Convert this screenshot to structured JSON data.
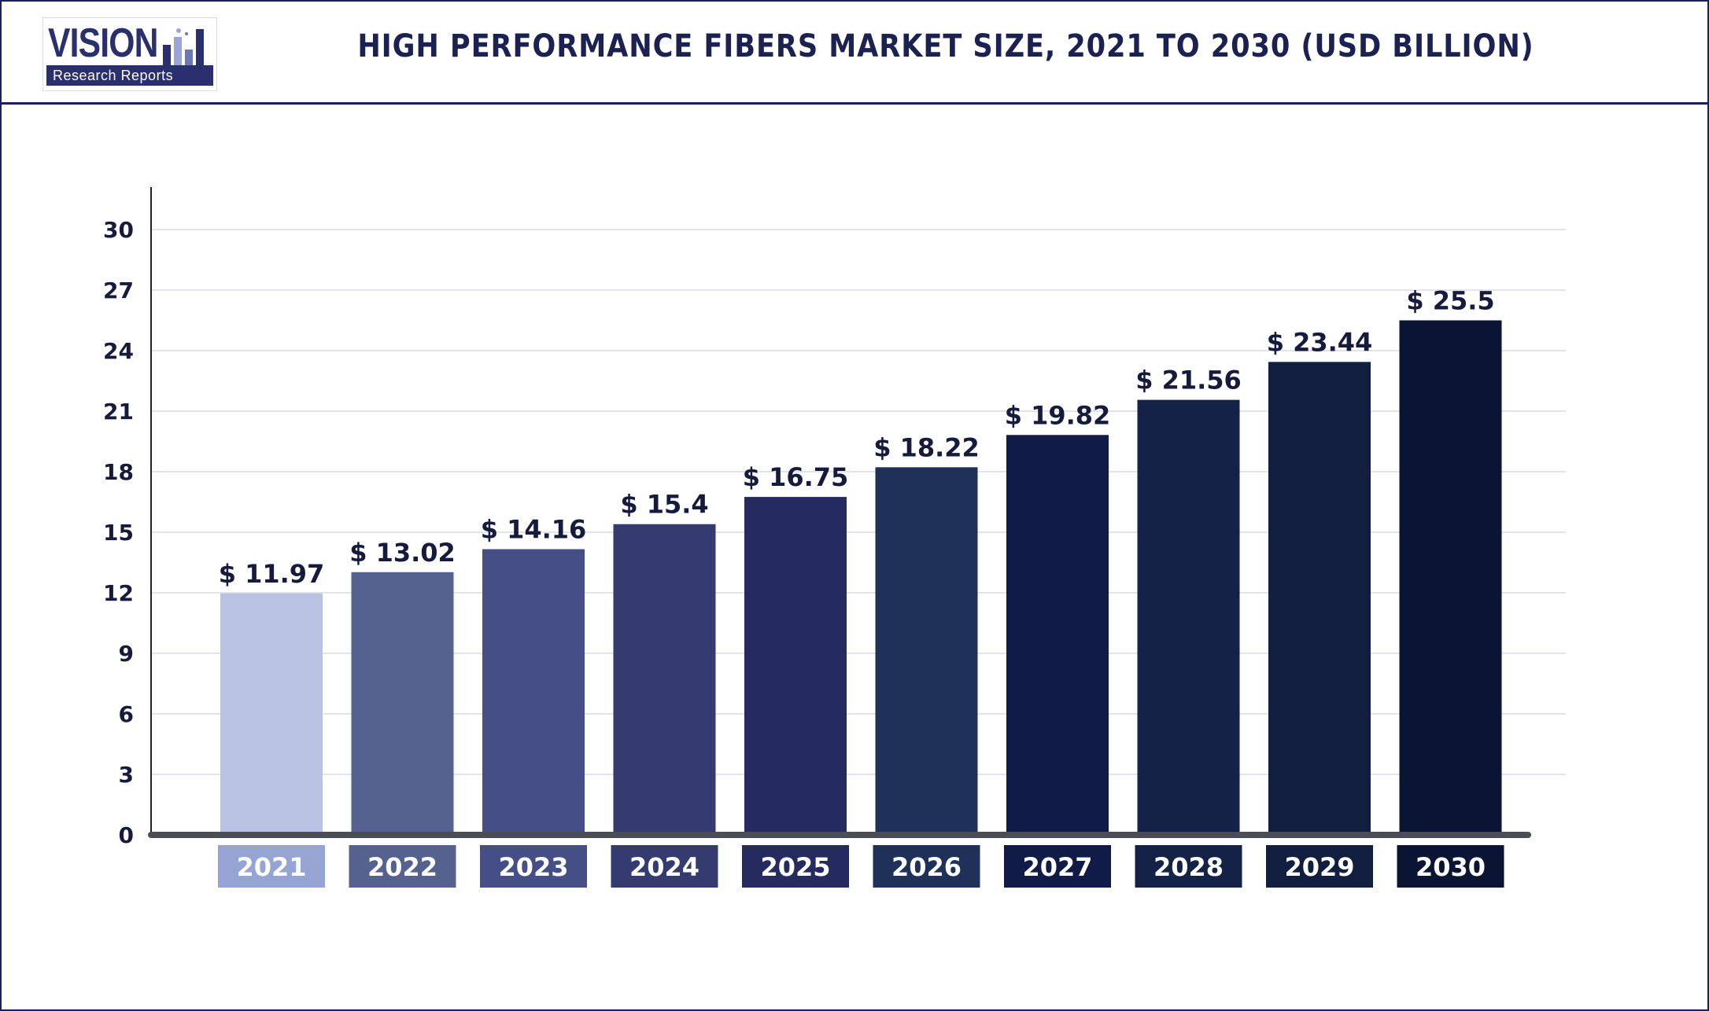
{
  "brand": {
    "logo_word": "VISION",
    "logo_sub": "Research Reports",
    "color": "#2a2f6e"
  },
  "chart_data": {
    "type": "bar",
    "title": "HIGH PERFORMANCE FIBERS MARKET SIZE, 2021 TO 2030 (USD BILLION)",
    "xlabel": "",
    "ylabel": "",
    "categories": [
      "2021",
      "2022",
      "2023",
      "2024",
      "2025",
      "2026",
      "2027",
      "2028",
      "2029",
      "2030"
    ],
    "values": [
      11.97,
      13.02,
      14.16,
      15.4,
      16.75,
      18.22,
      19.82,
      21.56,
      23.44,
      25.5
    ],
    "data_labels": [
      "$ 11.97",
      "$ 13.02",
      "$ 14.16",
      "$ 15.4",
      "$ 16.75",
      "$ 18.22",
      "$ 19.82",
      "$ 21.56",
      "$ 23.44",
      "$ 25.5"
    ],
    "ylim": [
      0,
      30
    ],
    "yticks": [
      0,
      3,
      6,
      9,
      12,
      15,
      18,
      21,
      24,
      27,
      30
    ],
    "grid": true,
    "legend": "none",
    "bar_colors": [
      "#b8c3e3",
      "#55618e",
      "#454e86",
      "#333b6f",
      "#252a5f",
      "#1f3059",
      "#101c47",
      "#152248",
      "#111e3f",
      "#0a1433"
    ],
    "label_box_colors": [
      "#95a4d3",
      "#55618e",
      "#454e86",
      "#333b6f",
      "#252a5f",
      "#1f3059",
      "#101c47",
      "#152248",
      "#111e3f",
      "#0a1433"
    ],
    "axis_color": "#4a4d55",
    "grid_color": "#e2e4ea"
  }
}
